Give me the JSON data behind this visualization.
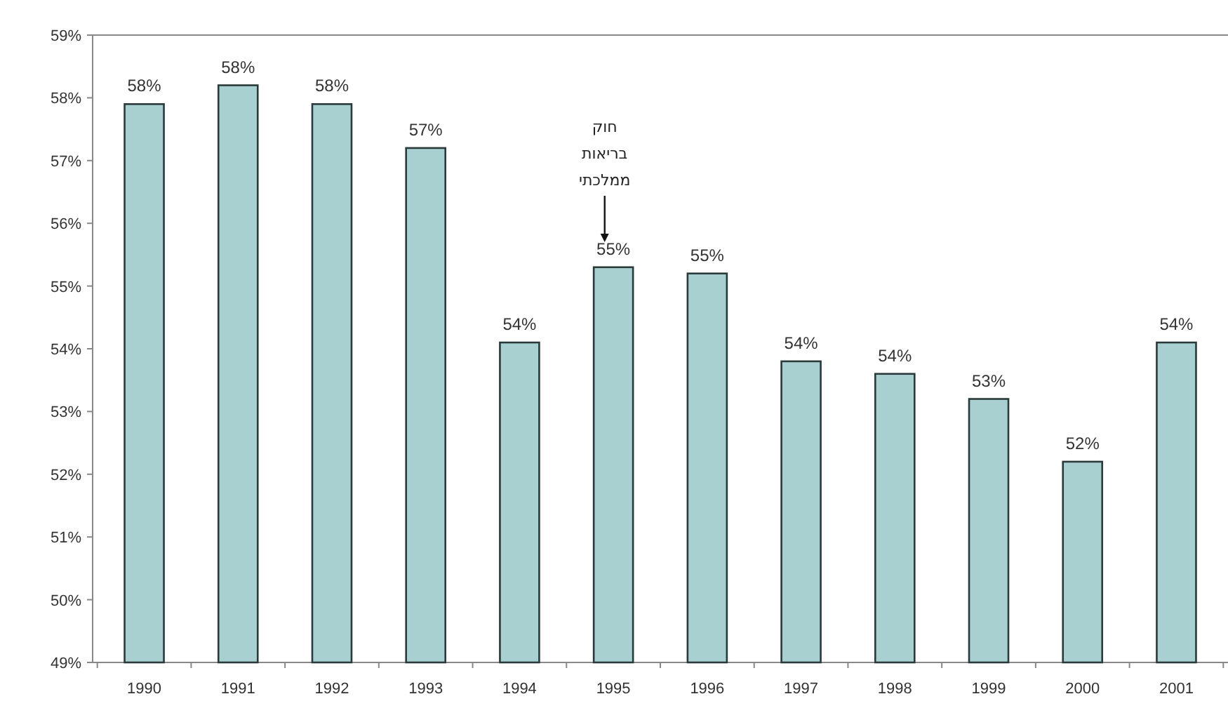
{
  "chart_data": {
    "type": "bar",
    "categories": [
      "1990",
      "1991",
      "1992",
      "1993",
      "1994",
      "1995",
      "1996",
      "1997",
      "1998",
      "1999",
      "2000",
      "2001"
    ],
    "values": [
      57.9,
      58.2,
      57.9,
      57.2,
      54.1,
      55.3,
      55.2,
      53.8,
      53.6,
      53.2,
      52.2,
      54.1
    ],
    "value_labels": [
      "58%",
      "58%",
      "58%",
      "57%",
      "54%",
      "55%",
      "55%",
      "54%",
      "54%",
      "53%",
      "52%",
      "54%"
    ],
    "color": "#a9d0d0",
    "ylim": [
      49,
      59
    ],
    "yticks": [
      {
        "value": 49,
        "label": "49%"
      },
      {
        "value": 50,
        "label": "50%"
      },
      {
        "value": 51,
        "label": "51%"
      },
      {
        "value": 52,
        "label": "52%"
      },
      {
        "value": 53,
        "label": "53%"
      },
      {
        "value": 54,
        "label": "54%"
      },
      {
        "value": 55,
        "label": "55%"
      },
      {
        "value": 56,
        "label": "56%"
      },
      {
        "value": 57,
        "label": "57%"
      },
      {
        "value": 58,
        "label": "58%"
      },
      {
        "value": 59,
        "label": "59%"
      }
    ],
    "annotations": [
      "חוק בריאות ממלכתי"
    ],
    "grid": false
  }
}
